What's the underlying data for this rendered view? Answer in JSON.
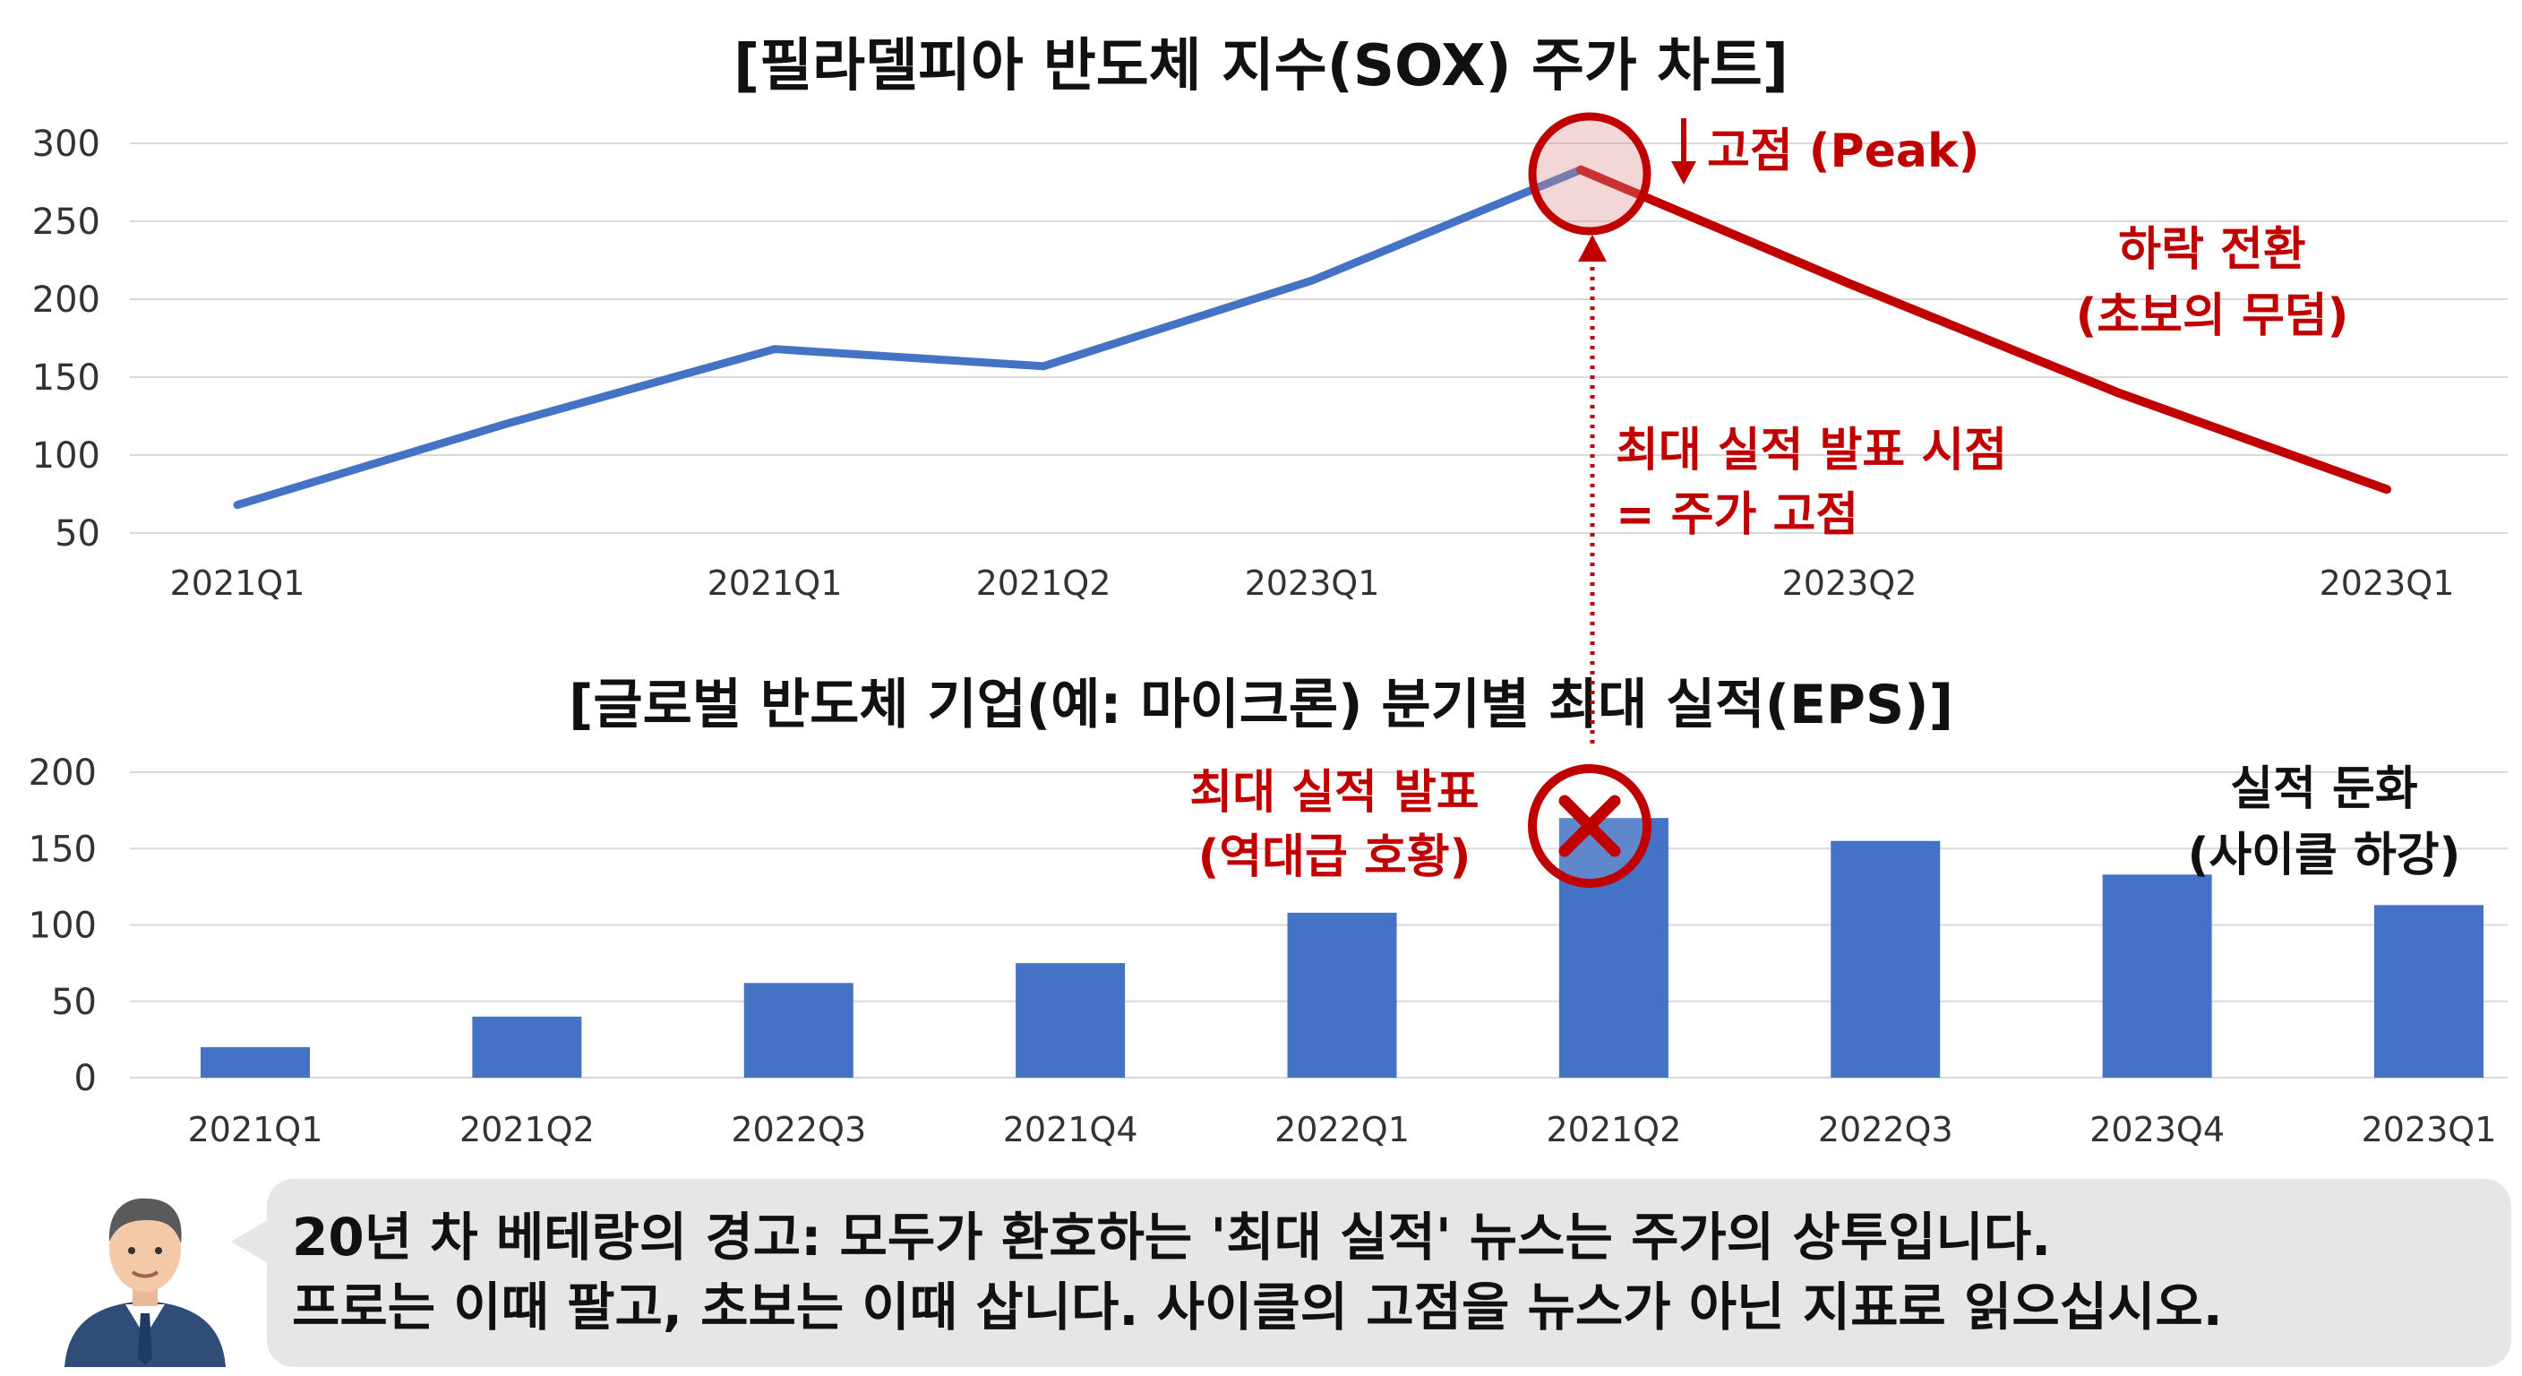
{
  "sox": {
    "title": "[필라델피아 반도체 지수(SOX) 주가 차트]",
    "peak_label": "고점 (Peak)",
    "decline_label_1": "하락 전환",
    "decline_label_2": "(초보의 무덤)",
    "max_earnings_label_1": "최대 실적 발표 시점",
    "max_earnings_label_2": "= 주가 고점"
  },
  "eps": {
    "title": "[글로벌 반도체 기업(예: 마이크론) 분기별 최대 실적(EPS)]",
    "max_label_1": "최대 실적 발표",
    "max_label_2": "(역대급 호황)",
    "slowdown_label_1": "실적 둔화",
    "slowdown_label_2": "(사이클 하강)"
  },
  "chart_data": [
    {
      "type": "line",
      "title": "[필라델피아 반도체 지수(SOX) 주가 차트]",
      "y_ticks": [
        "300",
        "250",
        "200",
        "150",
        "100",
        "50"
      ],
      "ylim": [
        50,
        300
      ],
      "x_tick_labels": [
        "2021Q1",
        "2021Q1",
        "2021Q2",
        "2023Q1",
        "2023Q2",
        "2023Q1"
      ],
      "x_tick_positions": [
        0,
        2,
        3,
        4,
        6,
        8
      ],
      "series": [
        {
          "values": [
            68,
            120,
            168,
            157,
            212,
            283
          ],
          "color": "#4472c4"
        },
        {
          "values": [
            283,
            210,
            140,
            78
          ],
          "color": "#c00000",
          "start_index": 5
        }
      ],
      "x_points": [
        0,
        1,
        2,
        3,
        4,
        5,
        6,
        7,
        8
      ],
      "peak_index": 5,
      "grid": true
    },
    {
      "type": "bar",
      "title": "[글로벌 반도체 기업(예: 마이크론) 분기별 최대 실적(EPS)]",
      "categories": [
        "2021Q1",
        "2021Q2",
        "2022Q3",
        "2021Q4",
        "2022Q1",
        "2021Q2",
        "2022Q3",
        "2023Q4",
        "2023Q1"
      ],
      "values": [
        20,
        40,
        62,
        75,
        108,
        170,
        155,
        133,
        113
      ],
      "y_ticks": [
        "200",
        "150",
        "100",
        "50",
        "0"
      ],
      "ylim": [
        0,
        200
      ],
      "color": "#4472c4",
      "highlight_index": 5,
      "grid": true
    }
  ],
  "speech": {
    "line1": "20년 차 베테랑의 경고: 모두가 환호하는 '최대 실적' 뉴스는 주가의 상투입니다.",
    "line2": "프로는 이때 팔고, 초보는 이때 삽니다. 사이클의 고점을 뉴스가 아닌 지표로 읽으십시오."
  },
  "colors": {
    "accent_red": "#c00000",
    "series_blue": "#4472c4",
    "bubble_bg": "#e6e6e6"
  },
  "icons": {
    "avatar": "businessman-avatar-icon",
    "peak_marker": "circle-marker-icon",
    "cross_marker": "x-mark-icon",
    "arrow": "down-arrow-icon"
  }
}
